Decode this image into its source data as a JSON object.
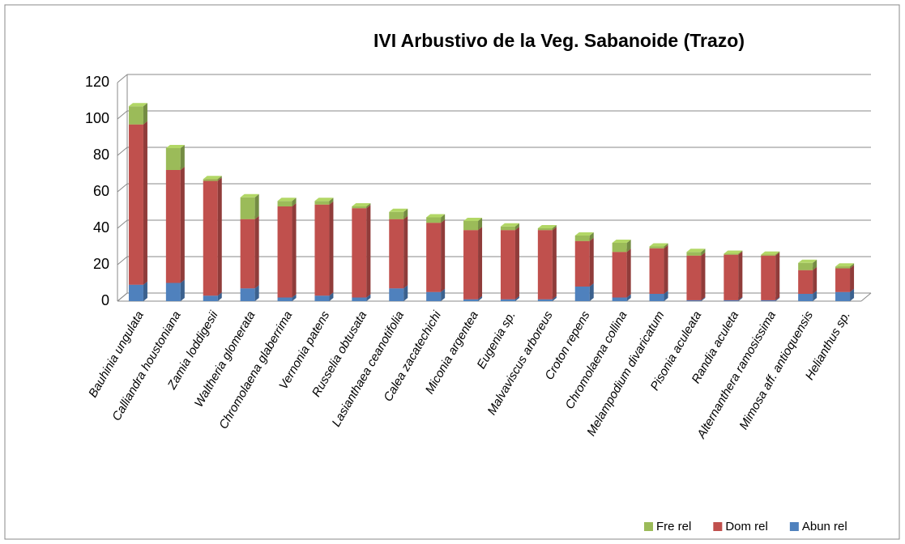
{
  "chart_data": {
    "type": "bar",
    "stacked": true,
    "title": "IVI Arbustivo de la Veg. Sabanoide (Trazo)",
    "categories": [
      "Bauhinia ungulata",
      "Calliandra houstoniana",
      "Zamia loddigesii",
      "Waltheria glomerata",
      "Chromolaena glaberrima",
      "Vernonia patens",
      "Russelia obtusata",
      "Lasianthaea ceanotifolia",
      "Calea zacatechichi",
      "Miconia argentea",
      "Eugenia sp.",
      "Malvaviscus arboreus",
      "Croton repens",
      "Chromolaena collina",
      "Melampodium divaricatum",
      "Pisonia aculeata",
      "Randia aculeta",
      "Alternanthera ramosissima",
      "Mimosa aff. antioquensis",
      "Helianthus sp."
    ],
    "series": [
      {
        "name": "Abun rel",
        "color": "#4f81bd",
        "values": [
          9,
          10,
          3,
          7,
          2,
          3,
          2,
          7,
          5,
          1,
          1,
          1,
          8,
          2,
          4,
          0.5,
          0.5,
          0.5,
          4,
          5
        ]
      },
      {
        "name": "Dom rel",
        "color": "#c0504d",
        "values": [
          88,
          62,
          63,
          38,
          50,
          50,
          49,
          38,
          38,
          38,
          38,
          38,
          25,
          25,
          25,
          24.5,
          25,
          24.5,
          13,
          13
        ]
      },
      {
        "name": "Fre rel",
        "color": "#9bbb59",
        "values": [
          10,
          12,
          1,
          12,
          3,
          2,
          1,
          4,
          3,
          5,
          2,
          1,
          3,
          5,
          1,
          2,
          0.5,
          0.5,
          4,
          1
        ]
      }
    ],
    "ylim": [
      0,
      120
    ],
    "yticks": [
      0,
      20,
      40,
      60,
      80,
      100,
      120
    ],
    "grid": true,
    "legend": "bottom-right"
  }
}
